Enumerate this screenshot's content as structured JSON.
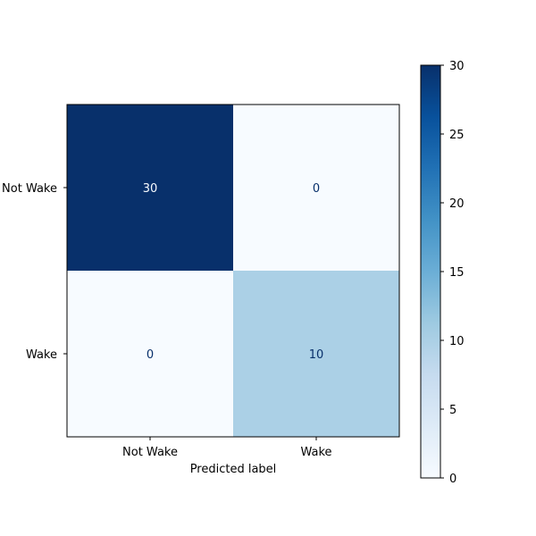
{
  "chart_data": {
    "type": "heatmap",
    "title": "",
    "xlabel": "Predicted label",
    "ylabel": "",
    "x_categories": [
      "Not Wake",
      "Wake"
    ],
    "y_categories": [
      "Not Wake",
      "Wake"
    ],
    "values": [
      [
        30,
        0
      ],
      [
        0,
        10
      ]
    ],
    "colormap": "Blues",
    "colorbar": {
      "min": 0,
      "max": 30,
      "ticks": [
        0,
        5,
        10,
        15,
        20,
        25,
        30
      ]
    },
    "colors": {
      "dark_cell": "#08306b",
      "light_cell": "#f7fbff",
      "mid_cell": "#a6cee4",
      "text_on_dark": "#f7fbff",
      "text_on_light": "#08306b"
    }
  }
}
